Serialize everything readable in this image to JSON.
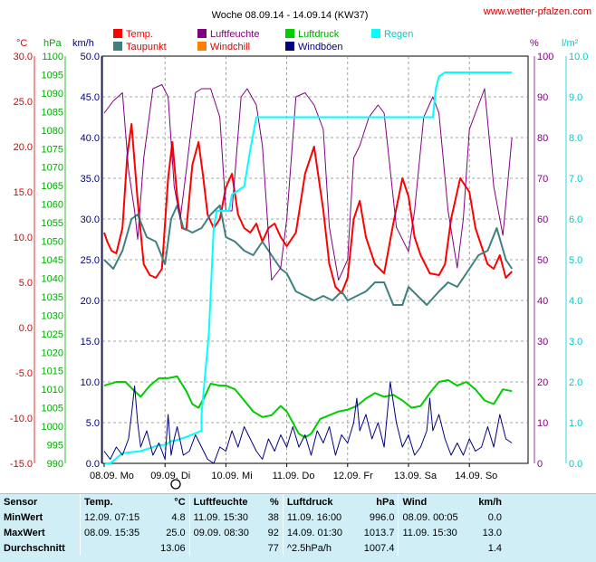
{
  "header": {
    "title": "Woche 08.09.14 - 14.09.14 (KW37)",
    "credit": "www.wetter-pfalzen.com"
  },
  "chart_data": {
    "type": "line",
    "x_ticks": [
      "08.09. Mo",
      "09.09. Di",
      "10.09. Mi",
      "11.09. Do",
      "12.09. Fr",
      "13.09. Sa",
      "14.09. So"
    ],
    "axes": {
      "temp": {
        "unit": "°C",
        "range": [
          -15,
          30
        ],
        "ticks": [
          "30.0",
          "25.0",
          "20.0",
          "15.0",
          "10.0",
          "5.0",
          "0.0",
          "-5.0",
          "-10.0",
          "-15.0"
        ],
        "color": "#dd0000"
      },
      "pressure": {
        "unit": "hPa",
        "range": [
          990,
          1100
        ],
        "ticks": [
          "1100",
          "1095",
          "1090",
          "1085",
          "1080",
          "1075",
          "1070",
          "1065",
          "1060",
          "1055",
          "1050",
          "1045",
          "1040",
          "1035",
          "1030",
          "1025",
          "1020",
          "1015",
          "1010",
          "1005",
          "1000",
          "995",
          "990"
        ],
        "color": "#00aa00"
      },
      "wind": {
        "unit": "km/h",
        "range": [
          0,
          50
        ],
        "ticks": [
          "50.0",
          "45.0",
          "40.0",
          "35.0",
          "30.0",
          "25.0",
          "20.0",
          "15.0",
          "10.0",
          "5.0",
          "0.0"
        ],
        "color": "#000080"
      },
      "humidity": {
        "unit": "%",
        "range": [
          0,
          100
        ],
        "ticks": [
          "100",
          "90",
          "80",
          "70",
          "60",
          "50",
          "40",
          "30",
          "20",
          "10",
          "0"
        ],
        "color": "#800080"
      },
      "rain": {
        "unit": "l/m²",
        "range": [
          0,
          10
        ],
        "ticks": [
          "10.0",
          "9.0",
          "8.0",
          "7.0",
          "6.0",
          "5.0",
          "4.0",
          "3.0",
          "2.0",
          "1.0",
          "0.0"
        ],
        "color": "#00cccc"
      }
    },
    "legend": [
      {
        "name": "Temp.",
        "color": "#ff0000"
      },
      {
        "name": "Luftfeuchte",
        "color": "#800080"
      },
      {
        "name": "Luftdruck",
        "color": "#00cc00"
      },
      {
        "name": "Regen",
        "color": "#00ffff"
      },
      {
        "name": "Taupunkt",
        "color": "#408080"
      },
      {
        "name": "Windchill",
        "color": "#ff8000"
      },
      {
        "name": "Windböen",
        "color": "#000080"
      }
    ],
    "series": [
      {
        "name": "Temp.",
        "axis": "temp",
        "color": "#ff0000",
        "x": [
          0,
          0.05,
          0.12,
          0.2,
          0.3,
          0.38,
          0.45,
          0.55,
          0.65,
          0.75,
          0.85,
          0.95,
          1.05,
          1.12,
          1.2,
          1.28,
          1.35,
          1.45,
          1.55,
          1.62,
          1.7,
          1.8,
          1.9,
          2.0,
          2.1,
          2.2,
          2.3,
          2.4,
          2.5,
          2.6,
          2.7,
          2.8,
          2.9,
          3.0,
          3.15,
          3.3,
          3.45,
          3.6,
          3.7,
          3.8,
          3.9,
          4.0,
          4.1,
          4.2,
          4.3,
          4.45,
          4.6,
          4.75,
          4.9,
          5.0,
          5.1,
          5.2,
          5.35,
          5.5,
          5.6,
          5.7,
          5.85,
          6.0,
          6.1,
          6.2,
          6.3,
          6.4,
          6.5,
          6.6,
          6.7
        ],
        "y": [
          10.5,
          9.5,
          8.5,
          8.2,
          11,
          19,
          22.5,
          14,
          7,
          5.8,
          5.5,
          6.5,
          16.5,
          20.5,
          14.5,
          11,
          10.8,
          18,
          20.5,
          17,
          12.5,
          11,
          12,
          15.5,
          17,
          12.5,
          11,
          10.5,
          11.5,
          9.5,
          11,
          11.5,
          10,
          9,
          10.5,
          17,
          20,
          13,
          7,
          4.5,
          3.8,
          5.5,
          12,
          14,
          10,
          7,
          6,
          11.5,
          16.5,
          14.5,
          10,
          8,
          6,
          5.8,
          7,
          12,
          16.5,
          15,
          11,
          9,
          7,
          6.5,
          8,
          5.5,
          6.2
        ]
      },
      {
        "name": "Taupunkt",
        "axis": "temp",
        "color": "#408080",
        "x": [
          0,
          0.15,
          0.3,
          0.45,
          0.55,
          0.7,
          0.85,
          1.0,
          1.1,
          1.2,
          1.3,
          1.45,
          1.6,
          1.75,
          1.9,
          2.0,
          2.15,
          2.3,
          2.45,
          2.6,
          2.75,
          2.9,
          3.0,
          3.15,
          3.3,
          3.45,
          3.6,
          3.75,
          3.9,
          4.0,
          4.15,
          4.3,
          4.45,
          4.6,
          4.75,
          4.9,
          5.0,
          5.15,
          5.3,
          5.5,
          5.65,
          5.8,
          6.0,
          6.15,
          6.3,
          6.45,
          6.6,
          6.7
        ],
        "y": [
          7.5,
          6.5,
          8.5,
          12,
          12.5,
          10,
          9.5,
          7,
          12,
          13.5,
          11,
          10.5,
          11,
          12.5,
          13.5,
          10,
          9.5,
          8.5,
          8,
          9.5,
          8,
          6.5,
          6,
          4,
          3.5,
          3,
          3.5,
          3,
          4,
          3,
          3.5,
          4,
          5,
          5,
          2.5,
          2.5,
          4.5,
          3.5,
          2.5,
          4,
          5,
          4.5,
          6.5,
          8,
          8.5,
          11,
          7.5,
          6.5
        ]
      },
      {
        "name": "Luftfeuchte",
        "axis": "humidity",
        "color": "#800080",
        "x": [
          0,
          0.15,
          0.3,
          0.4,
          0.5,
          0.55,
          0.65,
          0.8,
          0.95,
          1.05,
          1.15,
          1.25,
          1.35,
          1.5,
          1.6,
          1.75,
          1.9,
          2.0,
          2.1,
          2.25,
          2.35,
          2.5,
          2.6,
          2.75,
          2.9,
          3.0,
          3.15,
          3.3,
          3.45,
          3.6,
          3.7,
          3.85,
          4.0,
          4.1,
          4.2,
          4.35,
          4.5,
          4.6,
          4.8,
          5.0,
          5.1,
          5.25,
          5.4,
          5.5,
          5.65,
          5.8,
          5.9,
          6.0,
          6.1,
          6.25,
          6.4,
          6.55,
          6.7
        ],
        "y": [
          86,
          89,
          91,
          72,
          62,
          55,
          75,
          92,
          93,
          90,
          68,
          60,
          72,
          91,
          92,
          92,
          85,
          62,
          62,
          90,
          92,
          88,
          78,
          45,
          48,
          60,
          90,
          91,
          88,
          82,
          58,
          45,
          50,
          75,
          78,
          85,
          88,
          86,
          58,
          52,
          62,
          85,
          90,
          86,
          62,
          48,
          60,
          82,
          86,
          92,
          68,
          56,
          80
        ]
      },
      {
        "name": "Luftdruck",
        "axis": "pressure",
        "color": "#00cc00",
        "x": [
          0,
          0.2,
          0.35,
          0.5,
          0.6,
          0.75,
          0.9,
          1.05,
          1.2,
          1.35,
          1.45,
          1.55,
          1.65,
          1.75,
          1.9,
          2.0,
          2.15,
          2.3,
          2.45,
          2.6,
          2.75,
          2.9,
          3.0,
          3.1,
          3.2,
          3.3,
          3.4,
          3.55,
          3.7,
          3.85,
          4.0,
          4.15,
          4.3,
          4.45,
          4.6,
          4.75,
          4.9,
          5.05,
          5.2,
          5.35,
          5.5,
          5.65,
          5.8,
          5.95,
          6.1,
          6.25,
          6.4,
          6.55,
          6.7
        ],
        "y": [
          1011,
          1012,
          1012,
          1009.5,
          1008,
          1011,
          1013,
          1013,
          1013.5,
          1009.5,
          1006,
          1005,
          1008,
          1011.5,
          1011,
          1011,
          1010,
          1007,
          1004,
          1002.5,
          1003,
          1005.5,
          1004,
          1001,
          998,
          997,
          998,
          1002,
          1003,
          1004,
          1004.5,
          1005.5,
          1007.5,
          1009,
          1008,
          1008.5,
          1007,
          1005,
          1005.5,
          1009,
          1012,
          1012.5,
          1011,
          1012,
          1010,
          1007,
          1006,
          1010,
          1009.5
        ]
      },
      {
        "name": "Regen",
        "axis": "rain",
        "color": "#00ffff",
        "x": [
          0,
          0.1,
          0.3,
          0.6,
          0.9,
          1.0,
          1.1,
          1.15,
          1.25,
          1.35,
          1.6,
          1.6,
          1.72,
          1.8,
          1.85,
          1.95,
          2.05,
          2.1,
          2.3,
          2.4,
          2.5,
          3.0,
          4.0,
          5.0,
          5.4,
          5.45,
          5.5,
          5.6,
          6.0,
          6.7
        ],
        "y": [
          0,
          0,
          0.25,
          0.3,
          0.45,
          0.45,
          0.55,
          0.55,
          0.6,
          0.65,
          0.8,
          1.2,
          3.2,
          5.8,
          6.2,
          6.2,
          6.2,
          6.6,
          6.8,
          7.7,
          8.5,
          8.5,
          8.5,
          8.5,
          8.5,
          9.2,
          9.5,
          9.6,
          9.6,
          9.6
        ]
      },
      {
        "name": "Windböen",
        "axis": "wind",
        "color": "#000080",
        "x": [
          0,
          0.1,
          0.2,
          0.3,
          0.4,
          0.45,
          0.5,
          0.55,
          0.6,
          0.7,
          0.8,
          0.9,
          1.0,
          1.05,
          1.1,
          1.15,
          1.2,
          1.3,
          1.4,
          1.5,
          1.6,
          1.7,
          1.8,
          1.9,
          2.0,
          2.1,
          2.2,
          2.3,
          2.4,
          2.5,
          2.6,
          2.7,
          2.8,
          2.9,
          3.0,
          3.1,
          3.2,
          3.3,
          3.4,
          3.5,
          3.6,
          3.7,
          3.8,
          3.9,
          4.0,
          4.1,
          4.15,
          4.2,
          4.3,
          4.4,
          4.5,
          4.6,
          4.65,
          4.7,
          4.8,
          4.9,
          5.0,
          5.1,
          5.2,
          5.3,
          5.35,
          5.4,
          5.5,
          5.6,
          5.7,
          5.8,
          5.9,
          6.0,
          6.1,
          6.2,
          6.3,
          6.4,
          6.5,
          6.6,
          6.7
        ],
        "y": [
          1.5,
          0.5,
          2,
          1,
          3,
          6,
          9.5,
          5,
          2,
          4,
          1,
          2.5,
          0.5,
          6,
          1,
          3,
          4.5,
          1,
          1.5,
          3.5,
          2,
          0.5,
          0,
          2,
          1.5,
          4,
          2,
          4.5,
          3,
          1.5,
          0.5,
          3,
          1.5,
          3.5,
          2,
          4.5,
          2,
          3.5,
          1,
          4,
          2.5,
          4.5,
          1,
          3.5,
          2.5,
          5,
          8,
          4,
          6,
          3,
          5,
          2,
          6,
          10,
          5,
          2,
          3.5,
          1,
          2,
          4,
          8,
          4,
          6,
          3,
          1,
          2.5,
          1,
          3,
          1.5,
          2,
          4.5,
          2,
          6,
          3,
          2.5
        ]
      }
    ]
  },
  "stats": {
    "headers": [
      "Sensor",
      "Temp.",
      "°C",
      "Luftfeuchte",
      "%",
      "Luftdruck",
      "hPa",
      "Wind",
      "km/h"
    ],
    "rows": [
      {
        "label": "MinWert",
        "t_time": "12.09.  07:15",
        "t_val": "4.8",
        "h_time": "11.09.  15:30",
        "h_val": "38",
        "p_time": "11.09.  16:00",
        "p_val": "996.0",
        "w_time": "08.09.  00:05",
        "w_val": "0.0"
      },
      {
        "label": "MaxWert",
        "t_time": "08.09.  15:35",
        "t_val": "25.0",
        "h_time": "09.09.  08:30",
        "h_val": "92",
        "p_time": "14.09.  01:30",
        "p_val": "1013.7",
        "w_time": "11.09.  15:30",
        "w_val": "13.0"
      },
      {
        "label": "Durchschnitt",
        "t_time": "",
        "t_val": "13.06",
        "h_time": "",
        "h_val": "77",
        "p_time": "^2.5hPa/h",
        "p_val": "1007.4",
        "w_time": "",
        "w_val": "1.4"
      }
    ]
  }
}
